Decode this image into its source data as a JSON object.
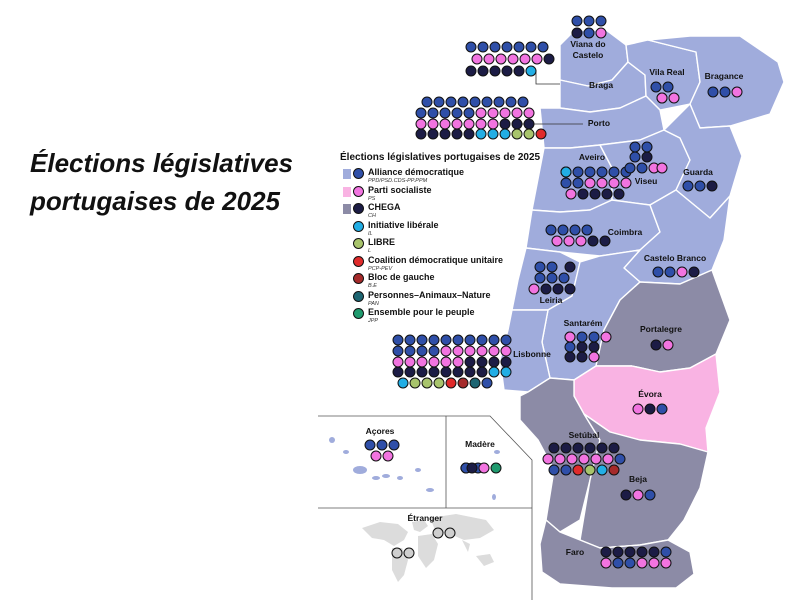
{
  "title": {
    "line1": "Élections législatives",
    "line2": "portugaises de 2025"
  },
  "legend": {
    "title": "Élections législatives portugaises de 2025",
    "items": [
      {
        "name": "Alliance démocratique",
        "abbr": "PPD/PSD.CDS-PP.PPM",
        "color": "#2f4fa8",
        "area_color": "#a0acdc"
      },
      {
        "name": "Parti socialiste",
        "abbr": "PS",
        "color": "#f274e0",
        "area_color": "#f9b3e3"
      },
      {
        "name": "CHEGA",
        "abbr": "CH",
        "color": "#1c1c45",
        "area_color": "#8c8ba6"
      },
      {
        "name": "Initiative libérale",
        "abbr": "IL",
        "color": "#22aee5",
        "area_color": ""
      },
      {
        "name": "LIBRE",
        "abbr": "L",
        "color": "#a8c46c",
        "area_color": ""
      },
      {
        "name": "Coalition démocratique unitaire",
        "abbr": "PCP-PEV",
        "color": "#e02b2b",
        "area_color": ""
      },
      {
        "name": "Bloc de gauche",
        "abbr": "B.E",
        "color": "#a52a2a",
        "area_color": ""
      },
      {
        "name": "Personnes–Animaux–Nature",
        "abbr": "PAN",
        "color": "#1d6572",
        "area_color": ""
      },
      {
        "name": "Ensemble pour le peuple",
        "abbr": "JPP",
        "color": "#1f9a6e",
        "area_color": ""
      }
    ]
  },
  "party_colors": {
    "AD": "#2f4fa8",
    "PS": "#f274e0",
    "CH": "#1c1c45",
    "IL": "#22aee5",
    "L": "#a8c46c",
    "CDU": "#e02b2b",
    "BE": "#a52a2a",
    "PAN": "#1d6572",
    "JPP": "#1f9a6e",
    "EMPTY": "#cfcfcf"
  },
  "districts": [
    {
      "id": "viana",
      "name": "Viana do Castelo",
      "winner": "AD",
      "seats": [
        "AD",
        "AD",
        "AD",
        "CH",
        "AD",
        "PS"
      ]
    },
    {
      "id": "braga",
      "name": "Braga",
      "winner": "AD",
      "seats": [
        "AD",
        "AD",
        "AD",
        "AD",
        "AD",
        "AD",
        "AD",
        "PS",
        "PS",
        "PS",
        "PS",
        "PS",
        "PS",
        "CH",
        "CH",
        "CH",
        "CH",
        "CH",
        "CH",
        "IL"
      ]
    },
    {
      "id": "vilareal",
      "name": "Vila Real",
      "winner": "AD",
      "seats": [
        "AD",
        "AD",
        "CH",
        "PS",
        "PS"
      ]
    },
    {
      "id": "braganca",
      "name": "Bragance",
      "winner": "AD",
      "seats": [
        "AD",
        "AD",
        "PS"
      ]
    },
    {
      "id": "porto",
      "name": "Porto",
      "winner": "AD",
      "seats": [
        "AD",
        "AD",
        "AD",
        "AD",
        "AD",
        "AD",
        "AD",
        "AD",
        "AD",
        "AD",
        "AD",
        "AD",
        "AD",
        "AD",
        "PS",
        "PS",
        "PS",
        "PS",
        "PS",
        "PS",
        "PS",
        "PS",
        "PS",
        "PS",
        "PS",
        "PS",
        "CH",
        "CH",
        "CH",
        "CH",
        "CH",
        "CH",
        "CH",
        "CH",
        "IL",
        "IL",
        "IL",
        "L",
        "L",
        "CDU"
      ]
    },
    {
      "id": "aveiro",
      "name": "Aveiro",
      "winner": "AD",
      "seats": [
        "AD",
        "AD",
        "AD",
        "AD",
        "AD",
        "AD",
        "AD",
        "AD",
        "PS",
        "PS",
        "PS",
        "PS",
        "PS",
        "CH",
        "CH",
        "CH",
        "CH",
        "IL"
      ]
    },
    {
      "id": "viseu",
      "name": "Viseu",
      "winner": "AD",
      "seats": [
        "AD",
        "AD",
        "AD",
        "CH",
        "AD",
        "AD",
        "PS",
        "PS"
      ]
    },
    {
      "id": "guarda",
      "name": "Guarda",
      "winner": "AD",
      "seats": [
        "AD",
        "AD",
        "CH"
      ]
    },
    {
      "id": "coimbra",
      "name": "Coimbra",
      "winner": "AD",
      "seats": [
        "AD",
        "AD",
        "AD",
        "AD",
        "PS",
        "PS",
        "PS",
        "CH",
        "CH"
      ]
    },
    {
      "id": "castelobranco",
      "name": "Castelo Branco",
      "winner": "AD",
      "seats": [
        "AD",
        "AD",
        "PS",
        "CH"
      ]
    },
    {
      "id": "leiria",
      "name": "Leiria",
      "winner": "AD",
      "seats": [
        "AD",
        "AD",
        "AD",
        "AD",
        "AD",
        "PS",
        "CH",
        "CH",
        "CH",
        "CH"
      ]
    },
    {
      "id": "santarem",
      "name": "Santarém",
      "winner": "AD",
      "seats": [
        "AD",
        "AD",
        "AD",
        "AD",
        "CH",
        "CH",
        "CH",
        "CH",
        "PS",
        "PS",
        "PS"
      ]
    },
    {
      "id": "portalegre",
      "name": "Portalegre",
      "winner": "CH",
      "seats": [
        "CH",
        "PS"
      ]
    },
    {
      "id": "lisbonne",
      "name": "Lisbonne",
      "winner": "AD",
      "seats": [
        "AD",
        "AD",
        "AD",
        "AD",
        "AD",
        "AD",
        "AD",
        "AD",
        "AD",
        "AD",
        "AD",
        "AD",
        "AD",
        "AD",
        "PS",
        "PS",
        "PS",
        "PS",
        "PS",
        "PS",
        "PS",
        "PS",
        "PS",
        "PS",
        "PS",
        "PS",
        "CH",
        "CH",
        "CH",
        "CH",
        "CH",
        "CH",
        "CH",
        "CH",
        "CH",
        "CH",
        "CH",
        "CH",
        "IL",
        "IL",
        "IL",
        "L",
        "L",
        "L",
        "CDU",
        "BE",
        "PAN",
        "AD"
      ]
    },
    {
      "id": "evora",
      "name": "Évora",
      "winner": "PS",
      "seats": [
        "PS",
        "CH",
        "AD"
      ]
    },
    {
      "id": "setubal",
      "name": "Setúbal",
      "winner": "CH",
      "seats": [
        "CH",
        "CH",
        "CH",
        "CH",
        "CH",
        "CH",
        "PS",
        "PS",
        "PS",
        "PS",
        "PS",
        "PS",
        "AD",
        "AD",
        "AD",
        "CDU",
        "L",
        "IL",
        "BE"
      ]
    },
    {
      "id": "beja",
      "name": "Beja",
      "winner": "CH",
      "seats": [
        "CH",
        "PS",
        "AD"
      ]
    },
    {
      "id": "faro",
      "name": "Faro",
      "winner": "CH",
      "seats": [
        "CH",
        "CH",
        "CH",
        "CH",
        "CH",
        "AD",
        "AD",
        "AD",
        "PS",
        "PS",
        "PS",
        "PS"
      ]
    },
    {
      "id": "acores",
      "name": "Açores",
      "winner": "AD",
      "seats": [
        "AD",
        "AD",
        "AD",
        "PS",
        "PS"
      ]
    },
    {
      "id": "madere",
      "name": "Madère",
      "winner": "AD",
      "seats": [
        "AD",
        "AD",
        "AD",
        "CH",
        "PS",
        "JPP"
      ]
    },
    {
      "id": "etranger",
      "name": "Étranger",
      "winner": "",
      "seats": [
        "EMPTY",
        "EMPTY",
        "EMPTY",
        "EMPTY"
      ]
    }
  ]
}
